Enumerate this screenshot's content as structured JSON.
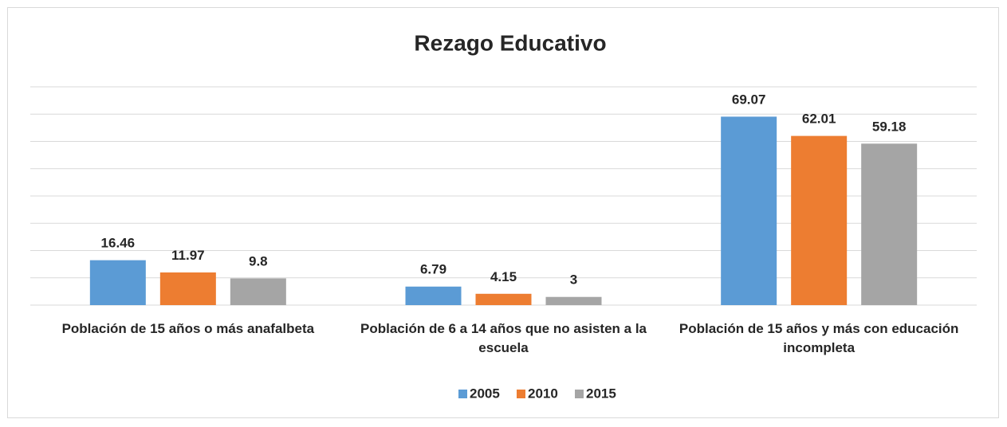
{
  "chart_data": {
    "type": "bar",
    "title": "Rezago Educativo",
    "categories": [
      "Población de 15 años o más anafalbeta",
      "Población de 6 a 14 años que no asisten a la escuela",
      "Población de 15 años y más con educación incompleta"
    ],
    "series": [
      {
        "name": "2005",
        "color": "#5b9bd5",
        "values": [
          16.46,
          6.79,
          69.07
        ]
      },
      {
        "name": "2010",
        "color": "#ed7d31",
        "values": [
          11.97,
          4.15,
          62.01
        ]
      },
      {
        "name": "2015",
        "color": "#a5a5a5",
        "values": [
          9.8,
          3,
          59.18
        ]
      }
    ],
    "ylim": [
      0,
      80
    ],
    "yticks": [
      0,
      10,
      20,
      30,
      40,
      50,
      60,
      70,
      80
    ],
    "grid": true,
    "legend": "bottom"
  }
}
